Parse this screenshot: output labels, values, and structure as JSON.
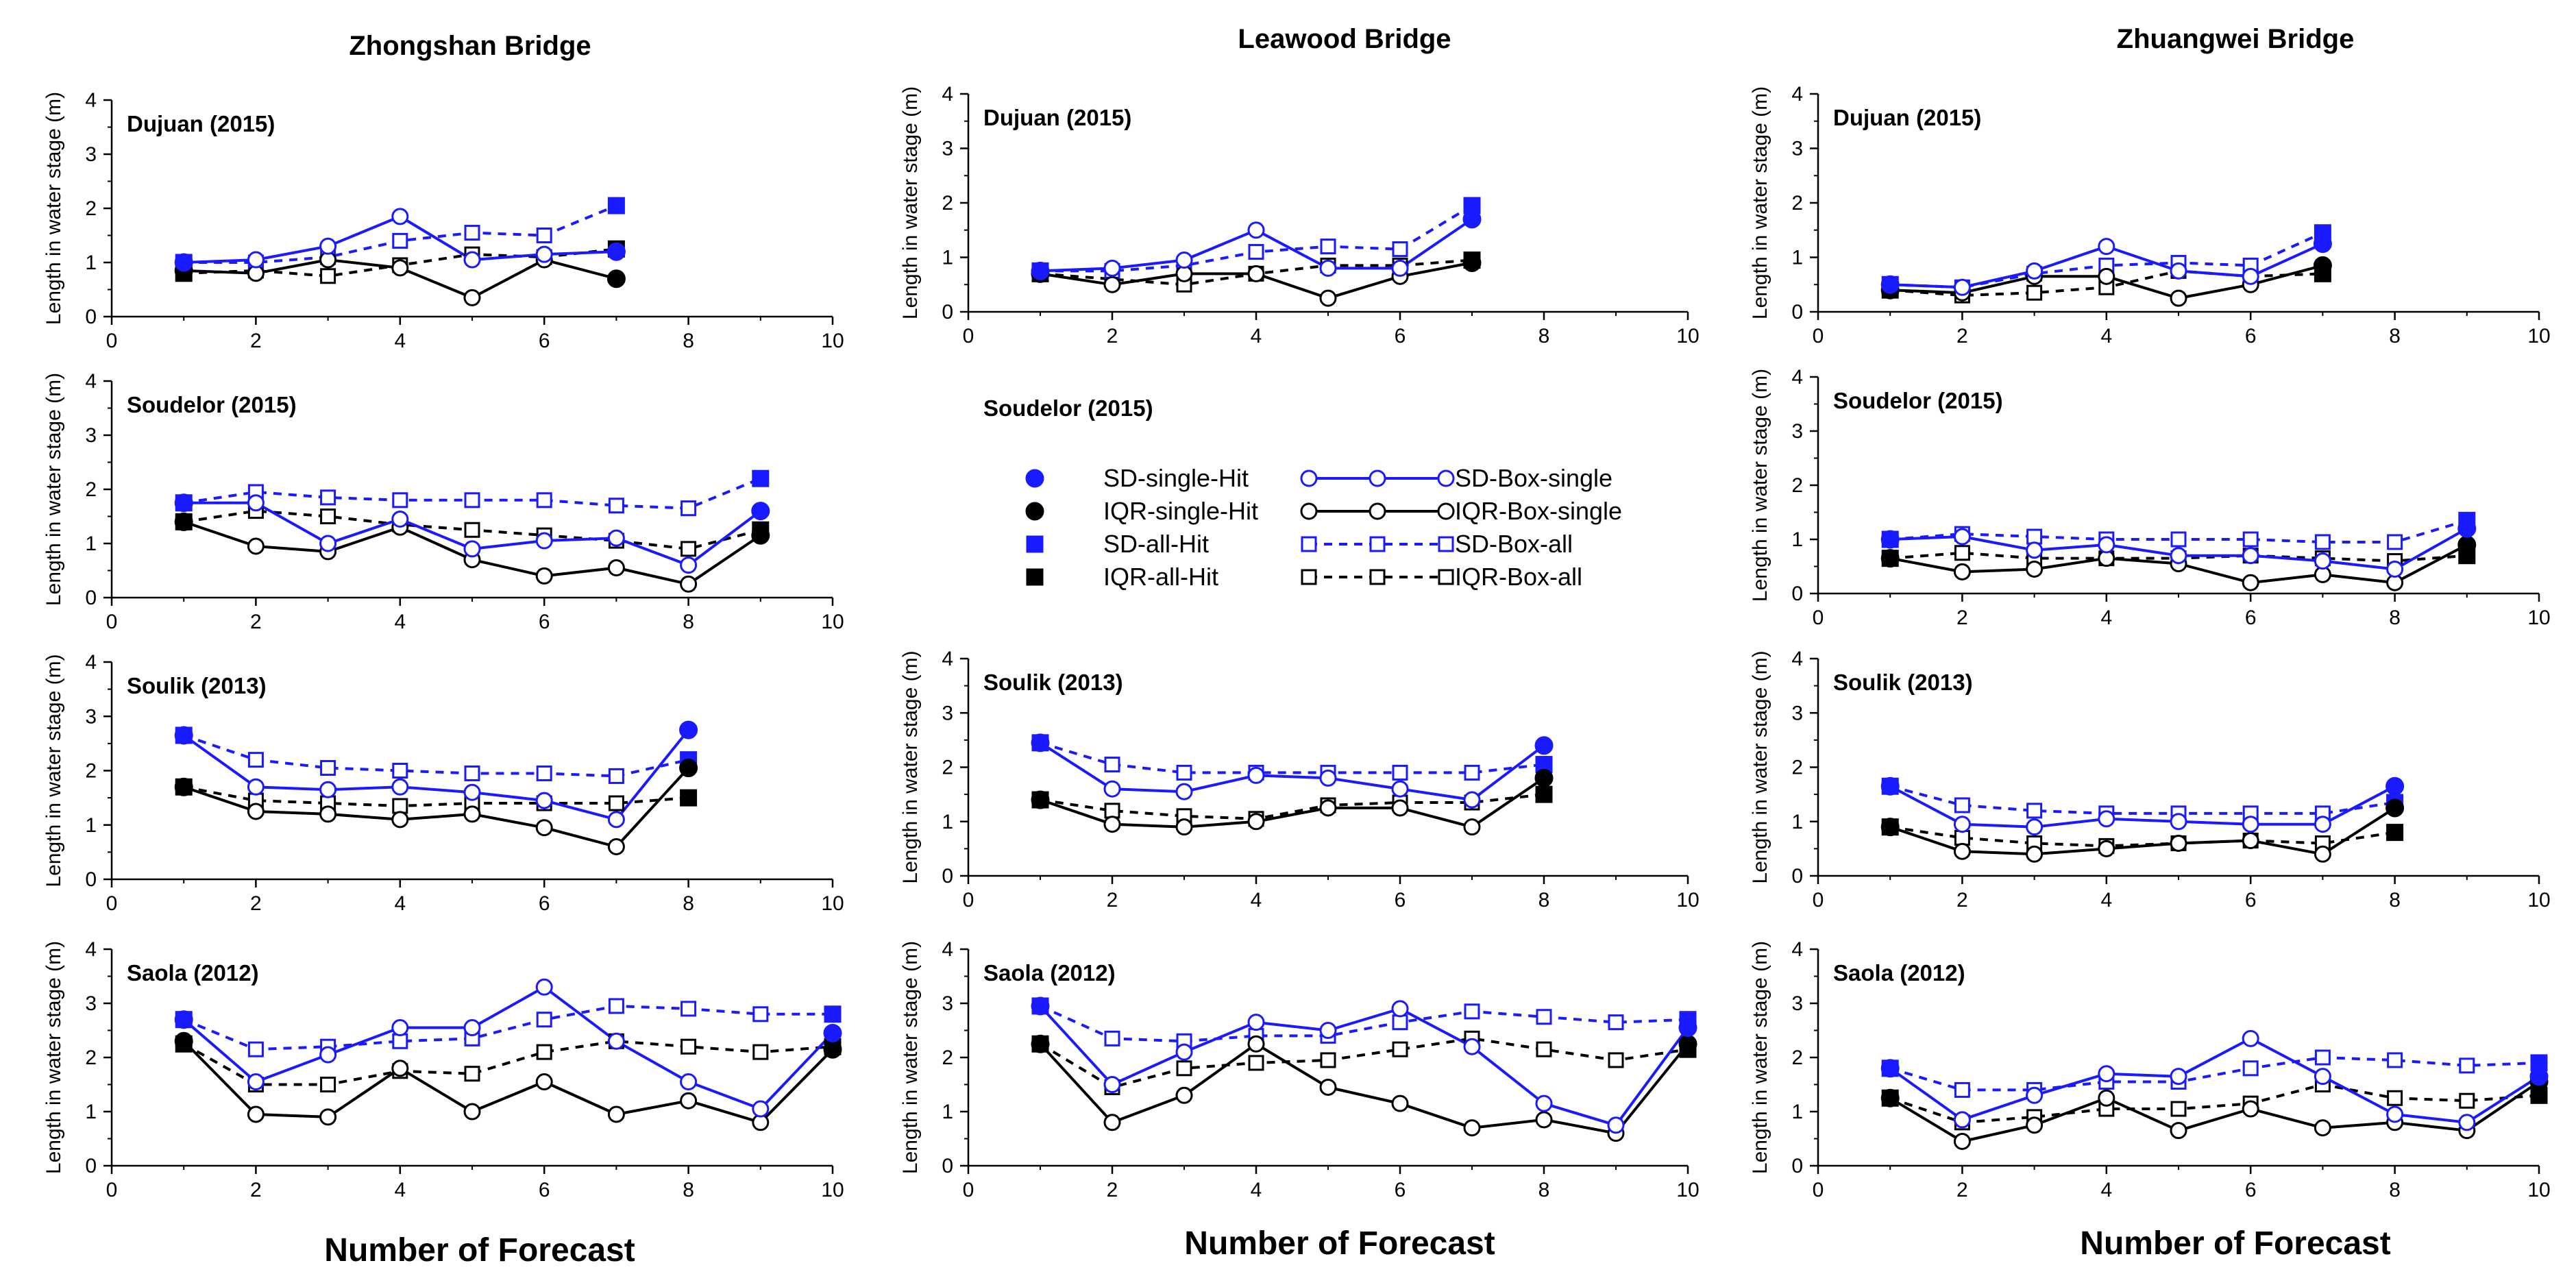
{
  "colors": {
    "blue": "#1a1aff",
    "black": "#000000"
  },
  "column_titles": [
    "Zhongshan Bridge",
    "Leawood Bridge",
    "Zhuangwei Bridge"
  ],
  "xlabel": "Number of Forecast",
  "ylabel": "Length in water stage (m)",
  "legend": {
    "items": [
      {
        "label": "SD-single-Hit",
        "marker": "filled-circle",
        "color": "blue",
        "line": "none"
      },
      {
        "label": "SD-Box-single",
        "marker": "open-circle",
        "color": "blue",
        "line": "solid"
      },
      {
        "label": "IQR-single-Hit",
        "marker": "filled-circle",
        "color": "black",
        "line": "none"
      },
      {
        "label": "IQR-Box-single",
        "marker": "open-circle",
        "color": "black",
        "line": "solid"
      },
      {
        "label": "SD-all-Hit",
        "marker": "filled-square",
        "color": "blue",
        "line": "none"
      },
      {
        "label": "SD-Box-all",
        "marker": "open-square",
        "color": "blue",
        "line": "dashed"
      },
      {
        "label": "IQR-all-Hit",
        "marker": "filled-square",
        "color": "black",
        "line": "none"
      },
      {
        "label": "IQR-Box-all",
        "marker": "open-square",
        "color": "black",
        "line": "dashed"
      }
    ]
  },
  "chart_data": [
    {
      "type": "line",
      "bridge": "Zhongshan Bridge",
      "typhoon": "Dujuan (2015)",
      "x": [
        1,
        2,
        3,
        4,
        5,
        6,
        7
      ],
      "xlim": [
        0,
        10
      ],
      "ylim": [
        0,
        4
      ],
      "xticks": [
        "0",
        "2",
        "4",
        "6",
        "8",
        "10"
      ],
      "yticks": [
        "0",
        "1",
        "2",
        "3",
        "4"
      ],
      "show_xticks": true,
      "ylabel": "Length in water stage (m)",
      "series": {
        "sd_single": [
          1.0,
          1.05,
          1.3,
          1.85,
          1.05,
          1.15,
          1.2
        ],
        "iqr_single": [
          0.85,
          0.8,
          1.05,
          0.9,
          0.35,
          1.05,
          0.7
        ],
        "sd_all": [
          1.0,
          1.0,
          1.1,
          1.4,
          1.55,
          1.5,
          2.05
        ],
        "iqr_all": [
          0.8,
          0.85,
          0.75,
          0.95,
          1.15,
          1.1,
          1.25
        ]
      }
    },
    {
      "type": "line",
      "bridge": "Zhongshan Bridge",
      "typhoon": "Soudelor (2015)",
      "x": [
        1,
        2,
        3,
        4,
        5,
        6,
        7,
        8,
        9
      ],
      "xlim": [
        0,
        10
      ],
      "ylim": [
        0,
        4
      ],
      "xticks": [
        "0",
        "2",
        "4",
        "6",
        "8",
        "10"
      ],
      "yticks": [
        "0",
        "1",
        "2",
        "3",
        "4"
      ],
      "show_xticks": true,
      "ylabel": "Length in water stage (m)",
      "series": {
        "sd_single": [
          1.75,
          1.75,
          1.0,
          1.45,
          0.9,
          1.05,
          1.1,
          0.6,
          1.6
        ],
        "iqr_single": [
          1.4,
          0.95,
          0.85,
          1.3,
          0.7,
          0.4,
          0.55,
          0.25,
          1.15
        ],
        "sd_all": [
          1.75,
          1.95,
          1.85,
          1.8,
          1.8,
          1.8,
          1.7,
          1.65,
          2.2
        ],
        "iqr_all": [
          1.4,
          1.6,
          1.5,
          1.35,
          1.25,
          1.15,
          1.05,
          0.9,
          1.25
        ]
      }
    },
    {
      "type": "line",
      "bridge": "Zhongshan Bridge",
      "typhoon": "Soulik (2013)",
      "x": [
        1,
        2,
        3,
        4,
        5,
        6,
        7,
        8
      ],
      "xlim": [
        0,
        10
      ],
      "ylim": [
        0,
        4
      ],
      "xticks": [
        "0",
        "2",
        "4",
        "6",
        "8",
        "10"
      ],
      "yticks": [
        "0",
        "1",
        "2",
        "3",
        "4"
      ],
      "show_xticks": true,
      "ylabel": "Length in water stage (m)",
      "series": {
        "sd_single": [
          2.65,
          1.7,
          1.65,
          1.7,
          1.6,
          1.45,
          1.1,
          2.75
        ],
        "iqr_single": [
          1.7,
          1.25,
          1.2,
          1.1,
          1.2,
          0.95,
          0.6,
          2.05
        ],
        "sd_all": [
          2.65,
          2.2,
          2.05,
          2.0,
          1.95,
          1.95,
          1.9,
          2.2
        ],
        "iqr_all": [
          1.7,
          1.45,
          1.4,
          1.35,
          1.4,
          1.4,
          1.4,
          1.5
        ]
      }
    },
    {
      "type": "line",
      "bridge": "Zhongshan Bridge",
      "typhoon": "Saola (2012)",
      "x": [
        1,
        2,
        3,
        4,
        5,
        6,
        7,
        8,
        9,
        10
      ],
      "xlim": [
        0,
        10
      ],
      "ylim": [
        0,
        4
      ],
      "xticks": [
        "0",
        "2",
        "4",
        "6",
        "8",
        "10"
      ],
      "yticks": [
        "0",
        "1",
        "2",
        "3",
        "4"
      ],
      "show_xticks": true,
      "ylabel": "Length in water stage (m)",
      "series": {
        "sd_single": [
          2.7,
          1.55,
          2.05,
          2.55,
          2.55,
          3.3,
          2.3,
          1.55,
          1.05,
          2.45
        ],
        "iqr_single": [
          2.3,
          0.95,
          0.9,
          1.8,
          1.0,
          1.55,
          0.95,
          1.2,
          0.8,
          2.15
        ],
        "sd_all": [
          2.7,
          2.15,
          2.2,
          2.3,
          2.35,
          2.7,
          2.95,
          2.9,
          2.8,
          2.8
        ],
        "iqr_all": [
          2.25,
          1.5,
          1.5,
          1.75,
          1.7,
          2.1,
          2.3,
          2.2,
          2.1,
          2.2
        ]
      }
    },
    {
      "type": "line",
      "bridge": "Leawood Bridge",
      "typhoon": "Dujuan (2015)",
      "x": [
        1,
        2,
        3,
        4,
        5,
        6,
        7
      ],
      "xlim": [
        0,
        10
      ],
      "ylim": [
        0,
        4
      ],
      "xticks": [
        "0",
        "2",
        "4",
        "6",
        "8",
        "10"
      ],
      "yticks": [
        "0",
        "1",
        "2",
        "3",
        "4"
      ],
      "show_xticks": true,
      "ylabel": "Length in water stage (m)",
      "series": {
        "sd_single": [
          0.75,
          0.8,
          0.95,
          1.5,
          0.8,
          0.8,
          1.7
        ],
        "iqr_single": [
          0.7,
          0.5,
          0.7,
          0.7,
          0.25,
          0.65,
          0.9
        ],
        "sd_all": [
          0.75,
          0.75,
          0.85,
          1.1,
          1.2,
          1.15,
          1.95
        ],
        "iqr_all": [
          0.7,
          0.6,
          0.5,
          0.7,
          0.85,
          0.85,
          0.95
        ]
      }
    },
    {
      "type": "line",
      "bridge": "Leawood Bridge",
      "typhoon": "Soudelor (2015)",
      "x": [],
      "xlim": [
        0,
        10
      ],
      "ylim": [
        0,
        4
      ],
      "xticks": [],
      "yticks": [],
      "show_xticks": false,
      "ylabel": "",
      "axes_hidden": true,
      "series": {
        "sd_single": [],
        "iqr_single": [],
        "sd_all": [],
        "iqr_all": []
      }
    },
    {
      "type": "line",
      "bridge": "Leawood Bridge",
      "typhoon": "Soulik (2013)",
      "x": [
        1,
        2,
        3,
        4,
        5,
        6,
        7,
        8
      ],
      "xlim": [
        0,
        10
      ],
      "ylim": [
        0,
        4
      ],
      "xticks": [
        "0",
        "2",
        "4",
        "6",
        "8",
        "10"
      ],
      "yticks": [
        "0",
        "1",
        "2",
        "3",
        "4"
      ],
      "show_xticks": true,
      "ylabel": "Length in water stage (m)",
      "series": {
        "sd_single": [
          2.45,
          1.6,
          1.55,
          1.85,
          1.8,
          1.6,
          1.4,
          2.4
        ],
        "iqr_single": [
          1.4,
          0.95,
          0.9,
          1.0,
          1.25,
          1.25,
          0.9,
          1.8
        ],
        "sd_all": [
          2.45,
          2.05,
          1.9,
          1.9,
          1.9,
          1.9,
          1.9,
          2.05
        ],
        "iqr_all": [
          1.4,
          1.2,
          1.1,
          1.05,
          1.3,
          1.35,
          1.35,
          1.5
        ]
      }
    },
    {
      "type": "line",
      "bridge": "Leawood Bridge",
      "typhoon": "Saola (2012)",
      "x": [
        1,
        2,
        3,
        4,
        5,
        6,
        7,
        8,
        9,
        10
      ],
      "xlim": [
        0,
        10
      ],
      "ylim": [
        0,
        4
      ],
      "xticks": [
        "0",
        "2",
        "4",
        "6",
        "8",
        "10"
      ],
      "yticks": [
        "0",
        "1",
        "2",
        "3",
        "4"
      ],
      "show_xticks": true,
      "ylabel": "Length in water stage (m)",
      "series": {
        "sd_single": [
          2.95,
          1.5,
          2.1,
          2.65,
          2.5,
          2.9,
          2.2,
          1.15,
          0.75,
          2.55
        ],
        "iqr_single": [
          2.25,
          0.8,
          1.3,
          2.25,
          1.45,
          1.15,
          0.7,
          0.85,
          0.6,
          2.25
        ],
        "sd_all": [
          2.95,
          2.35,
          2.3,
          2.4,
          2.4,
          2.65,
          2.85,
          2.75,
          2.65,
          2.7
        ],
        "iqr_all": [
          2.25,
          1.45,
          1.8,
          1.9,
          1.95,
          2.15,
          2.35,
          2.15,
          1.95,
          2.15
        ]
      }
    },
    {
      "type": "line",
      "bridge": "Zhuangwei Bridge",
      "typhoon": "Dujuan (2015)",
      "x": [
        1,
        2,
        3,
        4,
        5,
        6,
        7
      ],
      "xlim": [
        0,
        10
      ],
      "ylim": [
        0,
        4
      ],
      "xticks": [
        "0",
        "2",
        "4",
        "6",
        "8",
        "10"
      ],
      "yticks": [
        "0",
        "1",
        "2",
        "3",
        "4"
      ],
      "show_xticks": true,
      "ylabel": "Length in water stage (m)",
      "series": {
        "sd_single": [
          0.5,
          0.45,
          0.75,
          1.2,
          0.75,
          0.65,
          1.25
        ],
        "iqr_single": [
          0.4,
          0.35,
          0.65,
          0.65,
          0.25,
          0.5,
          0.85
        ],
        "sd_all": [
          0.5,
          0.45,
          0.7,
          0.85,
          0.9,
          0.85,
          1.45
        ],
        "iqr_all": [
          0.4,
          0.3,
          0.35,
          0.45,
          0.75,
          0.65,
          0.7
        ]
      }
    },
    {
      "type": "line",
      "bridge": "Zhuangwei Bridge",
      "typhoon": "Soudelor (2015)",
      "x": [
        1,
        2,
        3,
        4,
        5,
        6,
        7,
        8,
        9
      ],
      "xlim": [
        0,
        10
      ],
      "ylim": [
        0,
        4
      ],
      "xticks": [
        "0",
        "2",
        "4",
        "6",
        "8",
        "10"
      ],
      "yticks": [
        "0",
        "1",
        "2",
        "3",
        "4"
      ],
      "show_xticks": true,
      "ylabel": "Length in water stage (m)",
      "series": {
        "sd_single": [
          1.0,
          1.05,
          0.8,
          0.9,
          0.7,
          0.7,
          0.6,
          0.45,
          1.2
        ],
        "iqr_single": [
          0.65,
          0.4,
          0.45,
          0.65,
          0.55,
          0.2,
          0.35,
          0.2,
          0.9
        ],
        "sd_all": [
          1.0,
          1.1,
          1.05,
          1.0,
          1.0,
          1.0,
          0.95,
          0.95,
          1.35
        ],
        "iqr_all": [
          0.65,
          0.75,
          0.65,
          0.65,
          0.65,
          0.7,
          0.65,
          0.6,
          0.7
        ]
      }
    },
    {
      "type": "line",
      "bridge": "Zhuangwei Bridge",
      "typhoon": "Soulik (2013)",
      "x": [
        1,
        2,
        3,
        4,
        5,
        6,
        7,
        8
      ],
      "xlim": [
        0,
        10
      ],
      "ylim": [
        0,
        4
      ],
      "xticks": [
        "0",
        "2",
        "4",
        "6",
        "8",
        "10"
      ],
      "yticks": [
        "0",
        "1",
        "2",
        "3",
        "4"
      ],
      "show_xticks": true,
      "ylabel": "Length in water stage (m)",
      "series": {
        "sd_single": [
          1.65,
          0.95,
          0.9,
          1.05,
          1.0,
          0.95,
          0.95,
          1.65
        ],
        "iqr_single": [
          0.9,
          0.45,
          0.4,
          0.5,
          0.6,
          0.65,
          0.4,
          1.25
        ],
        "sd_all": [
          1.65,
          1.3,
          1.2,
          1.15,
          1.15,
          1.15,
          1.15,
          1.35
        ],
        "iqr_all": [
          0.9,
          0.7,
          0.6,
          0.55,
          0.6,
          0.65,
          0.6,
          0.8
        ]
      }
    },
    {
      "type": "line",
      "bridge": "Zhuangwei Bridge",
      "typhoon": "Saola (2012)",
      "x": [
        1,
        2,
        3,
        4,
        5,
        6,
        7,
        8,
        9,
        10
      ],
      "xlim": [
        0,
        10
      ],
      "ylim": [
        0,
        4
      ],
      "xticks": [
        "0",
        "2",
        "4",
        "6",
        "8",
        "10"
      ],
      "yticks": [
        "0",
        "1",
        "2",
        "3",
        "4"
      ],
      "show_xticks": true,
      "ylabel": "Length in water stage (m)",
      "series": {
        "sd_single": [
          1.8,
          0.85,
          1.3,
          1.7,
          1.65,
          2.35,
          1.65,
          0.95,
          0.8,
          1.65
        ],
        "iqr_single": [
          1.25,
          0.45,
          0.75,
          1.25,
          0.65,
          1.05,
          0.7,
          0.8,
          0.65,
          1.55
        ],
        "sd_all": [
          1.8,
          1.4,
          1.4,
          1.55,
          1.55,
          1.8,
          2.0,
          1.95,
          1.85,
          1.9
        ],
        "iqr_all": [
          1.25,
          0.8,
          0.9,
          1.05,
          1.05,
          1.15,
          1.5,
          1.25,
          1.2,
          1.3
        ]
      }
    }
  ]
}
